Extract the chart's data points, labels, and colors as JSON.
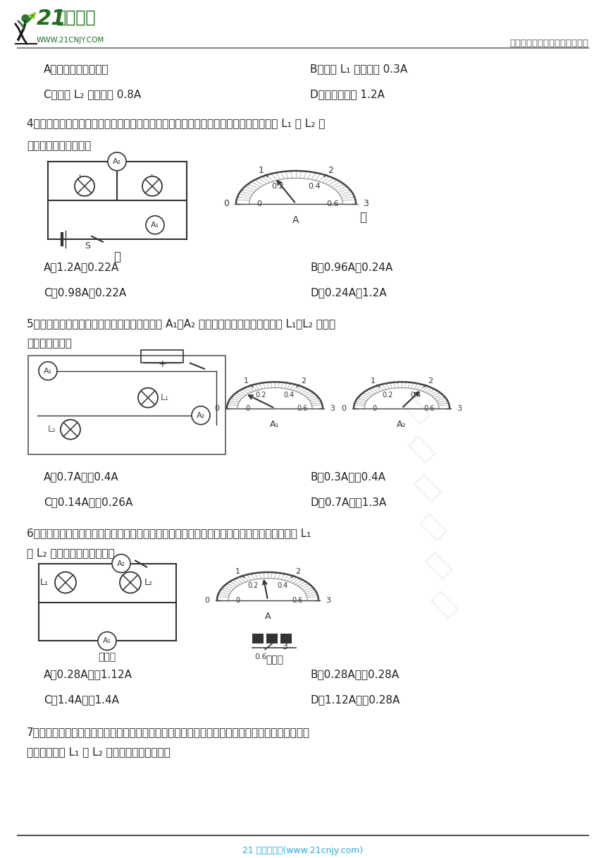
{
  "bg_color": "#ffffff",
  "header_right_text": "中小学教育资源及组卷应用平台",
  "footer_text": "21 世纪教育网(www.21cnjy.com)",
  "footer_color": "#29abe2",
  "q3_options": [
    [
      "A．两灯是串联连接的",
      "B．流过 L₁ 的电流是 0.3A"
    ],
    [
      "C．流过 L₂ 的电流是 0.8A",
      "D．干路电流是 1.2A"
    ]
  ],
  "q4_stem1": "4．在如图甲所示的电路中，当闭合开关后，两个电流表指针偏转均如图乙所示，则电灯 L₁ 和 L₂ 中",
  "q4_stem2": "的电流分别为（　　）",
  "q4_options": [
    [
      "A．1.2A，0.22A",
      "B．0.96A，0.24A"
    ],
    [
      "C．0.98A，0.22A",
      "D．0.24A，1.2A"
    ]
  ],
  "q5_stem1": "5．用下列电路探究电路的电流规律时，电流表 A₁、A₂ 的示数如图所示，则流过灯泡 L₁、L₂ 的电流",
  "q5_stem2": "分别是（　　）",
  "q5_options": [
    [
      "A．0.7A　　0.4A",
      "B．0.3A　　0.4A"
    ],
    [
      "C．0.14A　　0.26A",
      "D．0.7A　　1.3A"
    ]
  ],
  "q6_stem1": "6．如图（甲）所示，闭合开关后，两灯均发光，且两电流表示数均如图（乙）所示，则流过灯 L₁",
  "q6_stem2": "和 L₂ 的电流分别是（　　）",
  "q6_options": [
    [
      "A．0.28A　　1.12A",
      "B．0.28A　　0.28A"
    ],
    [
      "C．1.4A　　1.4A",
      "D．1.12A　　0.28A"
    ]
  ],
  "q7_stem1": "7．如图甲所示的电路中，闭合开关，两灯泡均发光，且两个完全相同的电流表指针偏转均如图乙所",
  "q7_stem2": "示，通过灯泡 L₁ 和 L₂ 的电流分别为（　　）"
}
